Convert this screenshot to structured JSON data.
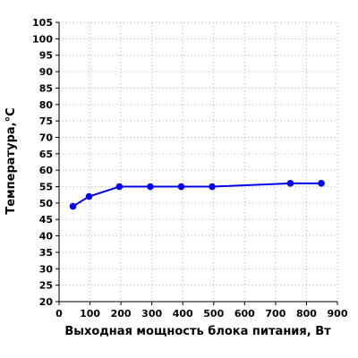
{
  "chart_data": {
    "type": "line",
    "xlabel": "Выходная мощность блока питания, Вт",
    "ylabel": "Температура,°C",
    "xlim": [
      0,
      900
    ],
    "ylim": [
      20,
      105
    ],
    "xticks": [
      0,
      100,
      200,
      300,
      400,
      500,
      600,
      700,
      800,
      900
    ],
    "yticks": [
      20,
      25,
      30,
      35,
      40,
      45,
      50,
      55,
      60,
      65,
      70,
      75,
      80,
      85,
      90,
      95,
      100,
      105
    ],
    "grid": true,
    "legend": "none",
    "color": "#0000ee",
    "series": [
      {
        "x": [
          45,
          97,
          195,
          295,
          395,
          495,
          748,
          848
        ],
        "y": [
          49,
          52,
          55,
          55,
          55,
          55,
          56,
          56
        ]
      }
    ]
  }
}
